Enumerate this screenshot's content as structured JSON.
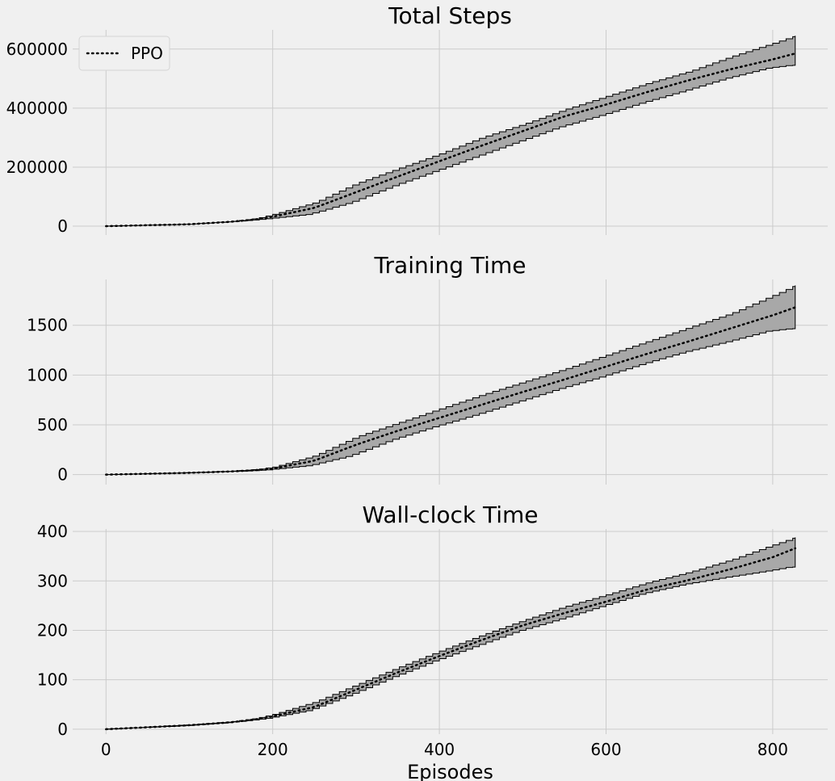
{
  "chart_data": [
    {
      "type": "area",
      "title": "Total Steps",
      "xlabel": "",
      "ylabel": "",
      "xlim": [
        -40,
        866
      ],
      "ylim": [
        -30000,
        665000
      ],
      "xticks": [
        0,
        200,
        400,
        600,
        800
      ],
      "yticks": [
        0,
        200000,
        400000,
        600000
      ],
      "ytick_labels": [
        "0",
        "200000",
        "400000",
        "600000"
      ],
      "show_xtick_labels": false,
      "grid": true,
      "legend": {
        "placement": "top-left",
        "entries": [
          "PPO"
        ]
      },
      "series": [
        {
          "name": "PPO",
          "style": "mean dotted line with min-max band",
          "x": [
            0,
            100,
            150,
            180,
            200,
            250,
            300,
            350,
            400,
            450,
            500,
            550,
            600,
            650,
            700,
            750,
            800,
            827
          ],
          "mean": [
            0,
            6500,
            15000,
            23000,
            32000,
            62000,
            115000,
            168000,
            220000,
            272000,
            322000,
            372000,
            412000,
            455000,
            495000,
            532000,
            565000,
            585000
          ],
          "min": [
            0,
            6000,
            14000,
            20000,
            25000,
            40000,
            80000,
            135000,
            185000,
            235000,
            285000,
            335000,
            375000,
            418000,
            458000,
            500000,
            535000,
            545000
          ],
          "max": [
            0,
            7000,
            16000,
            26000,
            40000,
            80000,
            145000,
            195000,
            245000,
            300000,
            345000,
            395000,
            440000,
            485000,
            525000,
            575000,
            620000,
            645000
          ]
        }
      ]
    },
    {
      "type": "area",
      "title": "Training Time",
      "xlabel": "",
      "ylabel": "",
      "xlim": [
        -40,
        866
      ],
      "ylim": [
        -100,
        1960
      ],
      "xticks": [
        0,
        200,
        400,
        600,
        800
      ],
      "yticks": [
        0,
        500,
        1000,
        1500
      ],
      "ytick_labels": [
        "0",
        "500",
        "1000",
        "1500"
      ],
      "show_xtick_labels": false,
      "grid": true,
      "series": [
        {
          "name": "PPO",
          "style": "mean dotted line with min-max band",
          "x": [
            0,
            100,
            150,
            180,
            200,
            250,
            300,
            350,
            400,
            450,
            500,
            550,
            600,
            650,
            700,
            750,
            800,
            827
          ],
          "mean": [
            0,
            18,
            32,
            45,
            60,
            140,
            300,
            440,
            570,
            700,
            830,
            955,
            1085,
            1215,
            1340,
            1470,
            1600,
            1680
          ],
          "min": [
            0,
            16,
            30,
            38,
            48,
            90,
            190,
            350,
            480,
            600,
            730,
            860,
            980,
            1110,
            1230,
            1330,
            1440,
            1465
          ],
          "max": [
            0,
            20,
            35,
            52,
            75,
            190,
            380,
            520,
            660,
            800,
            930,
            1060,
            1200,
            1340,
            1480,
            1620,
            1800,
            1900
          ]
        }
      ]
    },
    {
      "type": "area",
      "title": "Wall-clock Time",
      "xlabel": "Episodes",
      "ylabel": "",
      "xlim": [
        -40,
        866
      ],
      "ylim": [
        -10,
        405
      ],
      "xticks": [
        0,
        200,
        400,
        600,
        800
      ],
      "xtick_labels": [
        "0",
        "200",
        "400",
        "600",
        "800"
      ],
      "yticks": [
        0,
        100,
        200,
        300,
        400
      ],
      "ytick_labels": [
        "0",
        "100",
        "200",
        "300",
        "400"
      ],
      "show_xtick_labels": true,
      "grid": true,
      "series": [
        {
          "name": "PPO",
          "style": "mean dotted line with min-max band",
          "x": [
            0,
            100,
            150,
            180,
            200,
            250,
            300,
            350,
            400,
            450,
            500,
            550,
            600,
            650,
            700,
            750,
            800,
            827
          ],
          "mean": [
            0,
            8,
            14,
            20,
            26,
            45,
            80,
            115,
            148,
            180,
            210,
            235,
            258,
            283,
            302,
            324,
            348,
            366
          ],
          "min": [
            0,
            7,
            13,
            18,
            22,
            38,
            70,
            105,
            138,
            168,
            198,
            222,
            248,
            274,
            293,
            307,
            320,
            328
          ],
          "max": [
            0,
            9,
            15,
            22,
            30,
            55,
            90,
            125,
            158,
            190,
            220,
            248,
            272,
            297,
            318,
            343,
            373,
            388
          ]
        }
      ]
    }
  ]
}
